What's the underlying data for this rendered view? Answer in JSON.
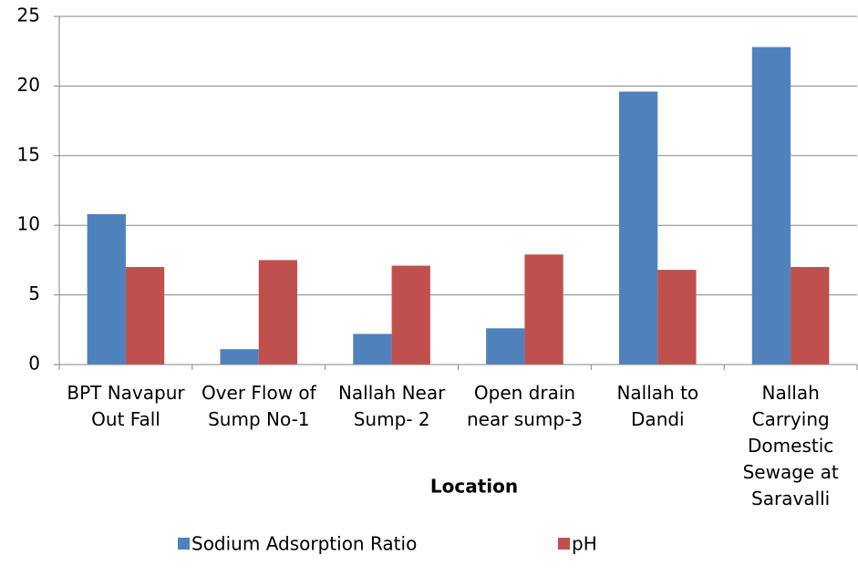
{
  "chart_data": {
    "type": "bar",
    "x_label": "Location",
    "categories": [
      "BPT Navapur Out Fall",
      "Over Flow of Sump No-1",
      "Nallah Near Sump- 2",
      "Open drain near sump-3",
      "Nallah to Dandi",
      "Nallah Carrying Domestic Sewage at Saravalli"
    ],
    "series": [
      {
        "name": "Sodium Adsorption Ratio",
        "color": "#4f81bd",
        "values": [
          10.8,
          1.1,
          2.2,
          2.6,
          19.6,
          22.8
        ]
      },
      {
        "name": "pH",
        "color": "#c0504d",
        "values": [
          7.0,
          7.5,
          7.1,
          7.9,
          6.8,
          7.0
        ]
      }
    ],
    "ylim": [
      0,
      25
    ],
    "yticks": [
      0,
      5,
      10,
      15,
      20,
      25
    ],
    "grid": true
  }
}
